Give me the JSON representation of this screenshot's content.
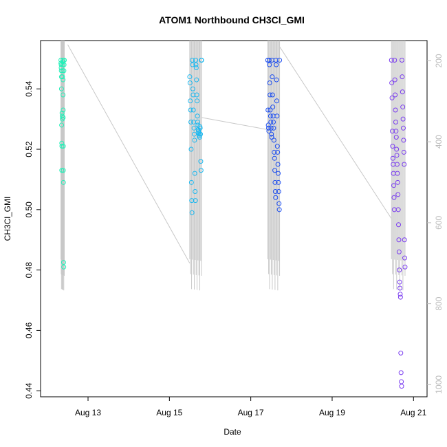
{
  "chart_data": {
    "type": "scatter",
    "title": "ATOM1 Northbound CH3Cl_GMI",
    "xlabel": "Date",
    "ylabel": "CH3Cl_GMI",
    "x_ticks": [
      "Aug 13",
      "Aug 15",
      "Aug 17",
      "Aug 19",
      "Aug 21"
    ],
    "y_ticks": [
      "0.44",
      "0.46",
      "0.48",
      "0.50",
      "0.52",
      "0.54"
    ],
    "y2_label": "",
    "y2_ticks": [
      "200",
      "400",
      "600",
      "800",
      "1000"
    ],
    "xlim": [
      "2016-08-11 20:00",
      "2016-08-21 08:00"
    ],
    "ylim": [
      0.438,
      0.556
    ],
    "y2lim": [
      1030,
      150
    ],
    "y2_reversed": true,
    "grid": false,
    "legend": "none",
    "secondary_series": {
      "name": "",
      "style": "line",
      "color": "#c8c8c8",
      "note": "pressure profile on right axis; vertical profiles at each point cluster, connected between flights"
    },
    "series": [
      {
        "name": "",
        "color": "#22f0b8",
        "time_range": [
          "2016-08-12 08:00",
          "2016-08-12 10:00"
        ],
        "points": [
          {
            "t": "08:00",
            "v": 0.5495
          },
          {
            "t": "08:00",
            "v": 0.5485
          },
          {
            "t": "08:10",
            "v": 0.548
          },
          {
            "t": "08:10",
            "v": 0.547
          },
          {
            "t": "08:15",
            "v": 0.546
          },
          {
            "t": "08:20",
            "v": 0.544
          },
          {
            "t": "08:20",
            "v": 0.54
          },
          {
            "t": "08:25",
            "v": 0.528
          },
          {
            "t": "08:30",
            "v": 0.513
          },
          {
            "t": "08:30",
            "v": 0.522
          },
          {
            "t": "08:35",
            "v": 0.521
          },
          {
            "t": "08:40",
            "v": 0.532
          },
          {
            "t": "08:45",
            "v": 0.531
          },
          {
            "t": "08:50",
            "v": 0.53
          },
          {
            "t": "08:55",
            "v": 0.544
          },
          {
            "t": "09:00",
            "v": 0.546
          },
          {
            "t": "09:05",
            "v": 0.548
          },
          {
            "t": "09:10",
            "v": 0.5495
          },
          {
            "t": "09:10",
            "v": 0.549
          },
          {
            "t": "09:15",
            "v": 0.543
          },
          {
            "t": "09:15",
            "v": 0.538
          },
          {
            "t": "09:20",
            "v": 0.533
          },
          {
            "t": "09:20",
            "v": 0.5305
          },
          {
            "t": "09:25",
            "v": 0.521
          },
          {
            "t": "09:25",
            "v": 0.513
          },
          {
            "t": "09:30",
            "v": 0.509
          },
          {
            "t": "09:35",
            "v": 0.4825
          },
          {
            "t": "09:40",
            "v": 0.481
          },
          {
            "t": "09:45",
            "v": 0.546
          },
          {
            "t": "09:50",
            "v": 0.548
          },
          {
            "t": "09:55",
            "v": 0.5495
          },
          {
            "t": "10:00",
            "v": 0.5495
          }
        ]
      },
      {
        "name": "",
        "color": "#1ab8f0",
        "time_range": [
          "2016-08-15 12:00",
          "2016-08-15 19:00"
        ],
        "points": [
          {
            "t": "12:00",
            "v": 0.544
          },
          {
            "t": "12:10",
            "v": 0.542
          },
          {
            "t": "12:20",
            "v": 0.536
          },
          {
            "t": "12:30",
            "v": 0.533
          },
          {
            "t": "12:40",
            "v": 0.529
          },
          {
            "t": "12:50",
            "v": 0.52
          },
          {
            "t": "13:00",
            "v": 0.509
          },
          {
            "t": "13:10",
            "v": 0.503
          },
          {
            "t": "13:20",
            "v": 0.499
          },
          {
            "t": "13:30",
            "v": 0.5495
          },
          {
            "t": "13:40",
            "v": 0.548
          },
          {
            "t": "13:50",
            "v": 0.54
          },
          {
            "t": "14:00",
            "v": 0.538
          },
          {
            "t": "14:10",
            "v": 0.533
          },
          {
            "t": "14:20",
            "v": 0.529
          },
          {
            "t": "14:30",
            "v": 0.527
          },
          {
            "t": "14:40",
            "v": 0.525
          },
          {
            "t": "14:50",
            "v": 0.523
          },
          {
            "t": "15:00",
            "v": 0.512
          },
          {
            "t": "15:10",
            "v": 0.506
          },
          {
            "t": "15:20",
            "v": 0.503
          },
          {
            "t": "15:30",
            "v": 0.5495
          },
          {
            "t": "15:40",
            "v": 0.548
          },
          {
            "t": "15:50",
            "v": 0.547
          },
          {
            "t": "16:00",
            "v": 0.543
          },
          {
            "t": "16:10",
            "v": 0.538
          },
          {
            "t": "16:20",
            "v": 0.536
          },
          {
            "t": "16:30",
            "v": 0.531
          },
          {
            "t": "16:40",
            "v": 0.529
          },
          {
            "t": "16:50",
            "v": 0.528
          },
          {
            "t": "17:00",
            "v": 0.5265
          },
          {
            "t": "17:10",
            "v": 0.526
          },
          {
            "t": "17:20",
            "v": 0.5255
          },
          {
            "t": "17:30",
            "v": 0.525
          },
          {
            "t": "17:40",
            "v": 0.5245
          },
          {
            "t": "17:50",
            "v": 0.524
          },
          {
            "t": "18:00",
            "v": 0.5275
          },
          {
            "t": "18:10",
            "v": 0.527
          },
          {
            "t": "18:20",
            "v": 0.525
          },
          {
            "t": "18:30",
            "v": 0.516
          },
          {
            "t": "18:40",
            "v": 0.513
          },
          {
            "t": "18:50",
            "v": 0.5495
          },
          {
            "t": "19:00",
            "v": 0.5495
          }
        ]
      },
      {
        "name": "",
        "color": "#1a4cf0",
        "time_range": [
          "2016-08-17 10:00",
          "2016-08-17 17:00"
        ],
        "points": [
          {
            "t": "10:00",
            "v": 0.5495
          },
          {
            "t": "10:10",
            "v": 0.533
          },
          {
            "t": "10:20",
            "v": 0.528
          },
          {
            "t": "10:30",
            "v": 0.527
          },
          {
            "t": "10:40",
            "v": 0.526
          },
          {
            "t": "10:50",
            "v": 0.5495
          },
          {
            "t": "11:00",
            "v": 0.548
          },
          {
            "t": "11:10",
            "v": 0.542
          },
          {
            "t": "11:20",
            "v": 0.538
          },
          {
            "t": "11:30",
            "v": 0.533
          },
          {
            "t": "11:40",
            "v": 0.531
          },
          {
            "t": "11:50",
            "v": 0.529
          },
          {
            "t": "12:00",
            "v": 0.527
          },
          {
            "t": "12:10",
            "v": 0.525
          },
          {
            "t": "12:20",
            "v": 0.524
          },
          {
            "t": "12:30",
            "v": 0.5495
          },
          {
            "t": "12:40",
            "v": 0.544
          },
          {
            "t": "12:50",
            "v": 0.538
          },
          {
            "t": "13:00",
            "v": 0.534
          },
          {
            "t": "13:10",
            "v": 0.531
          },
          {
            "t": "13:20",
            "v": 0.529
          },
          {
            "t": "13:30",
            "v": 0.527
          },
          {
            "t": "13:40",
            "v": 0.523
          },
          {
            "t": "13:50",
            "v": 0.519
          },
          {
            "t": "14:00",
            "v": 0.517
          },
          {
            "t": "14:10",
            "v": 0.513
          },
          {
            "t": "14:20",
            "v": 0.509
          },
          {
            "t": "14:30",
            "v": 0.506
          },
          {
            "t": "14:40",
            "v": 0.504
          },
          {
            "t": "14:50",
            "v": 0.5495
          },
          {
            "t": "15:00",
            "v": 0.548
          },
          {
            "t": "15:10",
            "v": 0.543
          },
          {
            "t": "15:20",
            "v": 0.536
          },
          {
            "t": "15:30",
            "v": 0.531
          },
          {
            "t": "15:40",
            "v": 0.521
          },
          {
            "t": "15:50",
            "v": 0.519
          },
          {
            "t": "16:00",
            "v": 0.515
          },
          {
            "t": "16:10",
            "v": 0.512
          },
          {
            "t": "16:20",
            "v": 0.509
          },
          {
            "t": "16:30",
            "v": 0.506
          },
          {
            "t": "16:40",
            "v": 0.502
          },
          {
            "t": "16:50",
            "v": 0.5
          },
          {
            "t": "17:00",
            "v": 0.5495
          }
        ]
      },
      {
        "name": "",
        "color": "#7a3cf0",
        "time_range": [
          "2016-08-20 11:00",
          "2016-08-20 19:00"
        ],
        "points": [
          {
            "t": "11:00",
            "v": 0.5495
          },
          {
            "t": "11:10",
            "v": 0.542
          },
          {
            "t": "11:20",
            "v": 0.537
          },
          {
            "t": "11:30",
            "v": 0.526
          },
          {
            "t": "11:40",
            "v": 0.521
          },
          {
            "t": "11:50",
            "v": 0.517
          },
          {
            "t": "12:00",
            "v": 0.515
          },
          {
            "t": "12:10",
            "v": 0.512
          },
          {
            "t": "12:20",
            "v": 0.508
          },
          {
            "t": "12:30",
            "v": 0.504
          },
          {
            "t": "12:40",
            "v": 0.5
          },
          {
            "t": "12:50",
            "v": 0.5495
          },
          {
            "t": "13:00",
            "v": 0.543
          },
          {
            "t": "13:10",
            "v": 0.538
          },
          {
            "t": "13:20",
            "v": 0.533
          },
          {
            "t": "13:30",
            "v": 0.529
          },
          {
            "t": "13:40",
            "v": 0.526
          },
          {
            "t": "13:50",
            "v": 0.524
          },
          {
            "t": "14:00",
            "v": 0.52
          },
          {
            "t": "14:10",
            "v": 0.518
          },
          {
            "t": "14:20",
            "v": 0.515
          },
          {
            "t": "14:30",
            "v": 0.512
          },
          {
            "t": "14:40",
            "v": 0.509
          },
          {
            "t": "14:50",
            "v": 0.505
          },
          {
            "t": "15:00",
            "v": 0.5
          },
          {
            "t": "15:10",
            "v": 0.495
          },
          {
            "t": "15:20",
            "v": 0.49
          },
          {
            "t": "15:30",
            "v": 0.486
          },
          {
            "t": "15:40",
            "v": 0.48
          },
          {
            "t": "15:50",
            "v": 0.476
          },
          {
            "t": "16:00",
            "v": 0.474
          },
          {
            "t": "16:10",
            "v": 0.472
          },
          {
            "t": "16:20",
            "v": 0.471
          },
          {
            "t": "16:30",
            "v": 0.4525
          },
          {
            "t": "16:40",
            "v": 0.446
          },
          {
            "t": "16:50",
            "v": 0.443
          },
          {
            "t": "17:00",
            "v": 0.4415
          },
          {
            "t": "17:10",
            "v": 0.5495
          },
          {
            "t": "17:20",
            "v": 0.544
          },
          {
            "t": "17:30",
            "v": 0.539
          },
          {
            "t": "17:40",
            "v": 0.534
          },
          {
            "t": "17:50",
            "v": 0.53
          },
          {
            "t": "18:00",
            "v": 0.527
          },
          {
            "t": "18:10",
            "v": 0.523
          },
          {
            "t": "18:20",
            "v": 0.519
          },
          {
            "t": "18:30",
            "v": 0.515
          },
          {
            "t": "18:40",
            "v": 0.49
          },
          {
            "t": "18:50",
            "v": 0.484
          },
          {
            "t": "19:00",
            "v": 0.481
          }
        ]
      }
    ]
  }
}
